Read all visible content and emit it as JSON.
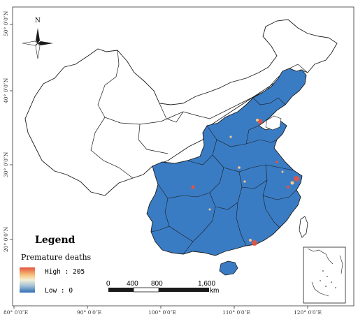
{
  "map": {
    "north_label": "N",
    "legend": {
      "title": "Legend",
      "subtitle": "Premature deaths",
      "high_label": "High : 205",
      "low_label": "Low : 0",
      "ramp_colors": [
        "#e2543f",
        "#f6c27a",
        "#f4efd5",
        "#a9c3d9",
        "#2f6fb4"
      ]
    },
    "scale_bar": {
      "labels": [
        "0",
        "400",
        "800",
        "1,600"
      ],
      "unit": "km"
    },
    "lon_ticks": [
      "80° 0′0″E",
      "90° 0′0″E",
      "100° 0′0″E",
      "110° 0′0″E",
      "120° 0′0″E"
    ],
    "lat_ticks": [
      "50° 0′0″N",
      "40° 0′0″N",
      "30° 0′0″N",
      "20° 0′0″N"
    ],
    "colors": {
      "fill_blue": "#3a7cc4",
      "hotspot_red": "#e8523e",
      "hotspot_light": "#f3c98c",
      "border": "#1a1a1a"
    }
  }
}
